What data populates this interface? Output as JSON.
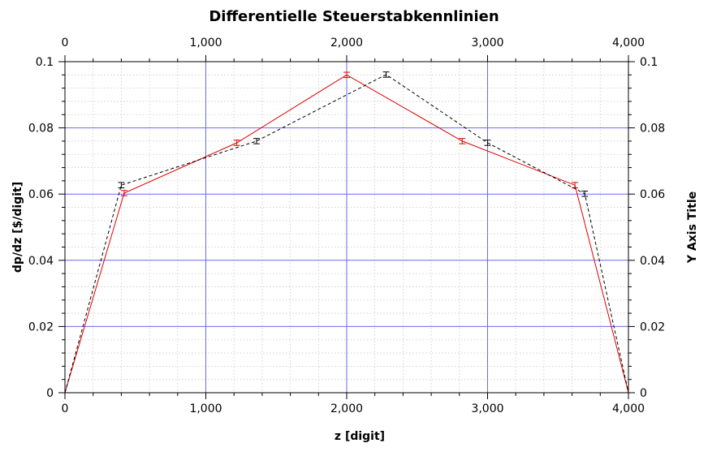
{
  "chart_data": {
    "type": "line",
    "title": "Differentielle Steuerstabkennlinien",
    "xlabel": "z [digit]",
    "ylabel": "dp/dz [$/digit]",
    "ylabel_right": "Y Axis Title",
    "xlim": [
      0,
      4000
    ],
    "ylim": [
      0,
      0.1
    ],
    "x_ticks": [
      "0",
      "1,000",
      "2,000",
      "3,000",
      "4,000"
    ],
    "y_ticks": [
      "0",
      "0.02",
      "0.04",
      "0.06",
      "0.08",
      "0.1"
    ],
    "grid": true,
    "series": [
      {
        "color": "#e00000",
        "line_style": "solid",
        "x": [
          0,
          420,
          1220,
          2000,
          2820,
          3620,
          4000
        ],
        "y": [
          0,
          0.0603,
          0.0755,
          0.096,
          0.076,
          0.0627,
          0
        ],
        "err": [
          0,
          0.0008,
          0.0008,
          0.0008,
          0.0008,
          0.0008,
          0
        ]
      },
      {
        "color": "#000000",
        "line_style": "dashed",
        "x": [
          0,
          400,
          1360,
          2280,
          3000,
          3690,
          4000
        ],
        "y": [
          0,
          0.0627,
          0.076,
          0.0961,
          0.0755,
          0.0601,
          0
        ],
        "err": [
          0,
          0.0008,
          0.0008,
          0.0008,
          0.0008,
          0.0008,
          0
        ]
      }
    ]
  }
}
